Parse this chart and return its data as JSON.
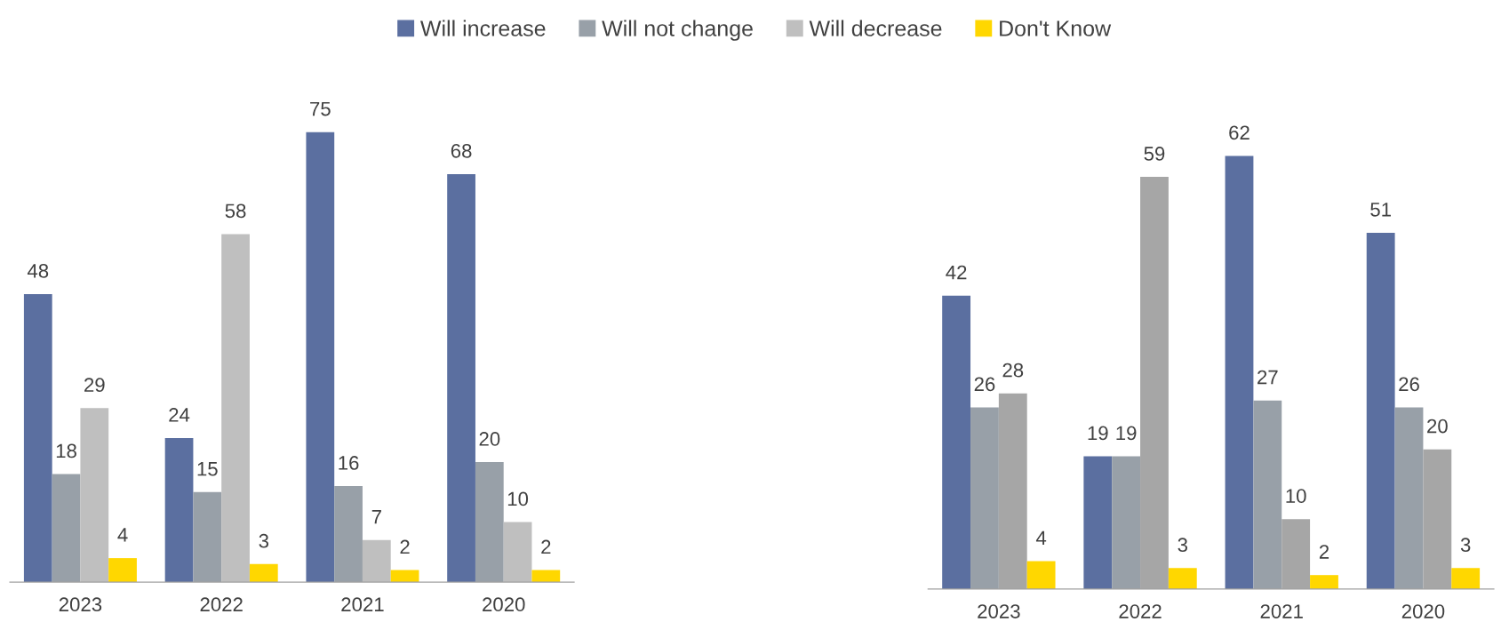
{
  "chart_data": [
    {
      "type": "bar",
      "categories": [
        "2023",
        "2022",
        "2021",
        "2020"
      ],
      "data_labels": true,
      "legend": "top",
      "series": [
        {
          "name": "Will increase",
          "color": "#5b6fa0",
          "values": [
            48,
            24,
            75,
            68
          ]
        },
        {
          "name": "Will not change",
          "color": "#98a0a8",
          "values": [
            18,
            15,
            16,
            20
          ]
        },
        {
          "name": "Will decrease",
          "color": "#bfbfbf",
          "values": [
            29,
            58,
            7,
            10
          ]
        },
        {
          "name": "Don't Know",
          "color": "#ffd700",
          "values": [
            4,
            3,
            2,
            2
          ]
        }
      ]
    },
    {
      "type": "bar",
      "categories": [
        "2023",
        "2022",
        "2021",
        "2020"
      ],
      "data_labels": true,
      "series": [
        {
          "color": "#5b6fa0",
          "values": [
            42,
            19,
            62,
            51
          ]
        },
        {
          "color": "#98a0a8",
          "values": [
            26,
            19,
            27,
            26
          ]
        },
        {
          "color": "#a6a6a6",
          "values": [
            28,
            59,
            10,
            20
          ]
        },
        {
          "color": "#ffd700",
          "values": [
            4,
            3,
            2,
            3
          ]
        }
      ]
    }
  ]
}
